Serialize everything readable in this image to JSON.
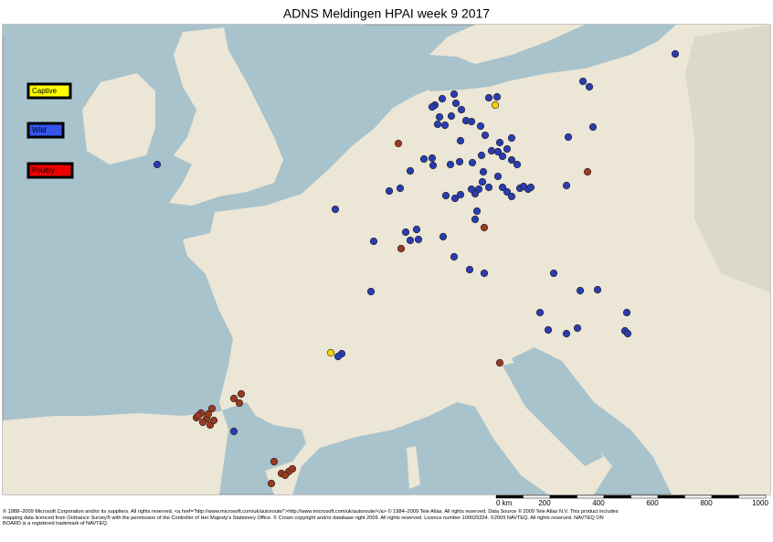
{
  "header": {
    "title": "ADNS Meldingen HPAI week 9 2017"
  },
  "legend": {
    "items": [
      "Captive",
      "Wild",
      "Poultry"
    ]
  },
  "scale": {
    "labels": [
      "0 km",
      200,
      400,
      600,
      800,
      1000
    ]
  },
  "footer": {
    "lines": [
      "© 1988–2009 Microsoft Corporation and/or its suppliers. All rights reserved. <a  href=\"http://www.microsoft.com/uk/autoroute/\">http://www.microsoft.com/uk/autoroute/</a> © 1984–2009 Tele Atlas.  All rights reserved.  Data Source © 2009 Tele Atlas N.V. This product includes",
      "mapping data licenced from Ordnance Survey® with the permission of the Controller of Her Majesty's Stationery Office.  © Crown copyright and/or database right 2009.  All rights reserved.  Licence number 100025324.   ©2009 NAVTEQ.  All rights reserved.  NAVTEQ ON",
      "BOARD is a registered trademark of NAVTEQ."
    ]
  }
}
